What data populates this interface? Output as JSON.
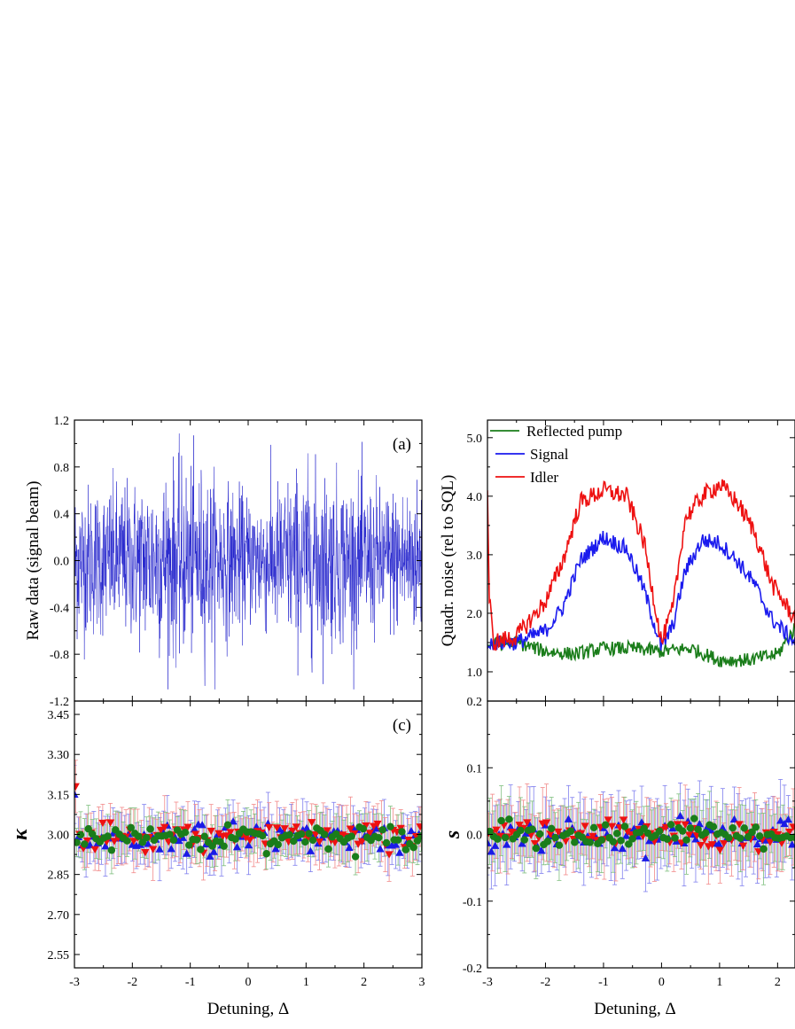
{
  "chart_data": [
    {
      "panel": "a",
      "type": "line",
      "tag": "(a)",
      "xlabel": "",
      "ylabel": "Raw data (signal beam)",
      "xlim": [
        -3,
        3
      ],
      "ylim": [
        -1.2,
        1.2
      ],
      "yticks": [
        "-1.2",
        "-0.8",
        "-0.4",
        "0.0",
        "0.4",
        "0.8",
        "1.2"
      ],
      "xticks": [],
      "grid": false,
      "color": "#2222cc",
      "series": [
        {
          "envelope_x": [
            -3,
            -2.5,
            -2,
            -1.5,
            -1.2,
            -0.8,
            -0.4,
            0,
            0.4,
            0.8,
            1.2,
            1.6,
            2,
            2.5,
            3
          ],
          "envelope_amp": [
            0.78,
            0.74,
            0.78,
            0.92,
            0.95,
            0.9,
            0.75,
            0.65,
            0.72,
            0.88,
            0.9,
            0.82,
            0.76,
            0.72,
            0.78
          ]
        }
      ]
    },
    {
      "panel": "b",
      "type": "line",
      "xlabel": "",
      "ylabel": "Quadr. noise (rel to SQL)",
      "xlim": [
        -3,
        2.3
      ],
      "ylim": [
        0.5,
        5.3
      ],
      "yticks": [
        "1.0",
        "2.0",
        "3.0",
        "4.0",
        "5.0"
      ],
      "xticks": [],
      "grid": false,
      "legend_position": "top-left",
      "series": [
        {
          "name": "Reflected pump",
          "color": "#1a7d1a",
          "x": [
            -3,
            -2.5,
            -2.0,
            -1.5,
            -1.0,
            -0.5,
            0,
            0.5,
            1.0,
            1.5,
            2.0,
            2.3
          ],
          "y": [
            1.45,
            1.5,
            1.35,
            1.3,
            1.4,
            1.4,
            1.35,
            1.4,
            1.2,
            1.2,
            1.3,
            1.75
          ]
        },
        {
          "name": "Signal",
          "color": "#1a1aee",
          "x": [
            -3,
            -2.95,
            -2.5,
            -2.0,
            -1.7,
            -1.4,
            -1.0,
            -0.6,
            -0.3,
            0,
            0.2,
            0.4,
            0.7,
            1.0,
            1.3,
            1.6,
            1.9,
            2.1,
            2.3
          ],
          "y": [
            1.4,
            1.5,
            1.5,
            1.7,
            2.1,
            2.9,
            3.3,
            3.1,
            2.4,
            1.4,
            1.8,
            2.7,
            3.25,
            3.2,
            2.9,
            2.5,
            1.9,
            1.7,
            1.5
          ]
        },
        {
          "name": "Idler",
          "color": "#ee1111",
          "x": [
            -3,
            -2.97,
            -2.9,
            -2.5,
            -2.0,
            -1.7,
            -1.4,
            -1.0,
            -0.6,
            -0.3,
            0,
            0.2,
            0.4,
            0.7,
            1.0,
            1.3,
            1.6,
            1.9,
            2.1,
            2.3
          ],
          "y": [
            4.1,
            2.3,
            1.5,
            1.6,
            2.2,
            2.9,
            3.9,
            4.1,
            4.0,
            3.2,
            1.5,
            2.1,
            3.6,
            4.0,
            4.2,
            3.9,
            3.4,
            2.5,
            2.2,
            1.9
          ]
        }
      ]
    },
    {
      "panel": "c",
      "type": "scatter",
      "tag": "(c)",
      "xlabel": "Detuning, Δ",
      "ylabel": "κ",
      "xlim": [
        -3,
        3
      ],
      "ylim": [
        2.5,
        3.5
      ],
      "xticks": [
        "-3",
        "-2",
        "-1",
        "0",
        "1",
        "2",
        "3"
      ],
      "yticks": [
        "2.55",
        "2.70",
        "2.85",
        "3.00",
        "3.15",
        "3.30",
        "3.45"
      ],
      "grid": false,
      "series": [
        {
          "marker": "triangle-up",
          "color": "#1a1ae6",
          "mean": 2.99,
          "spread": 0.05,
          "error": 0.1,
          "first": 3.15
        },
        {
          "marker": "triangle-down",
          "color": "#ee1111",
          "mean": 2.99,
          "spread": 0.045,
          "error": 0.1,
          "first": 3.18
        },
        {
          "marker": "circle",
          "color": "#1a7d1a",
          "mean": 2.99,
          "spread": 0.04,
          "error": 0.08,
          "first": 2.97
        }
      ]
    },
    {
      "panel": "d",
      "type": "scatter",
      "xlabel": "Detuning, Δ",
      "ylabel": "s",
      "xlim": [
        -3,
        2.3
      ],
      "ylim": [
        -0.2,
        0.2
      ],
      "xticks": [
        "-3",
        "-2",
        "-1",
        "0",
        "1",
        "2"
      ],
      "yticks": [
        "-0.2",
        "-0.1",
        "0.0",
        "0.1",
        "0.2"
      ],
      "grid": false,
      "series": [
        {
          "marker": "triangle-up",
          "color": "#1a1ae6",
          "mean": 0.0,
          "spread": 0.022,
          "error": 0.055
        },
        {
          "marker": "triangle-down",
          "color": "#ee1111",
          "mean": 0.0,
          "spread": 0.02,
          "error": 0.05
        },
        {
          "marker": "circle",
          "color": "#1a7d1a",
          "mean": 0.0,
          "spread": 0.016,
          "error": 0.045
        }
      ]
    }
  ]
}
